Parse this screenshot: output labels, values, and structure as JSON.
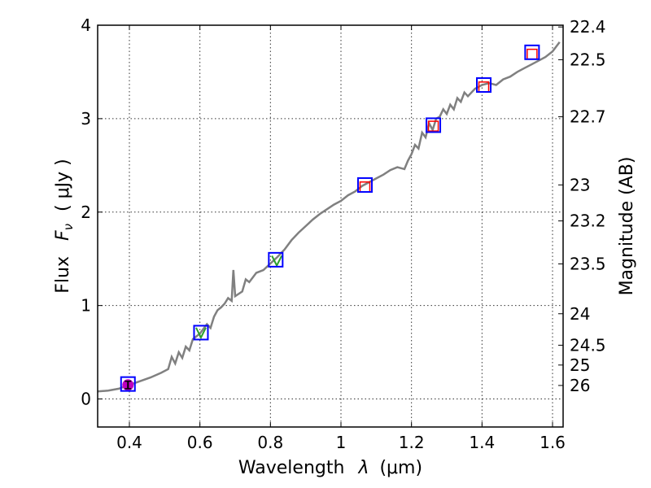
{
  "chart_data": {
    "type": "line",
    "xlabel": "Wavelength",
    "xlabel_symbol": "λ",
    "xlabel_unit": "(μm)",
    "ylabel": "Flux",
    "ylabel_symbol": "F",
    "ylabel_subscript": "ν",
    "ylabel_unit": "( μJy )",
    "ylabel_right": "Magnitude (AB)",
    "xlim": [
      0.31,
      1.63
    ],
    "ylim": [
      -0.3,
      4.0
    ],
    "grid": true,
    "x_ticks": [
      0.4,
      0.6,
      0.8,
      1.0,
      1.2,
      1.4,
      1.6
    ],
    "x_tick_labels": [
      "0.4",
      "0.6",
      "0.8",
      "1",
      "1.2",
      "1.4",
      "1.6"
    ],
    "y_ticks": [
      0,
      1,
      2,
      3,
      4
    ],
    "y_tick_labels": [
      "0",
      "1",
      "2",
      "3",
      "4"
    ],
    "right_ticks": [
      {
        "label": "22.4",
        "mag": 22.4
      },
      {
        "label": "22.5",
        "mag": 22.5
      },
      {
        "label": "22.7",
        "mag": 22.7
      },
      {
        "label": "23",
        "mag": 23.0
      },
      {
        "label": "23.2",
        "mag": 23.2
      },
      {
        "label": "23.5",
        "mag": 23.5
      },
      {
        "label": "24",
        "mag": 24.0
      },
      {
        "label": "24.5",
        "mag": 24.5
      },
      {
        "label": "25",
        "mag": 25.0
      },
      {
        "label": "26",
        "mag": 26.0
      }
    ],
    "model_spectrum": {
      "name": "model",
      "color": "#808080",
      "points": [
        [
          0.31,
          0.08
        ],
        [
          0.34,
          0.09
        ],
        [
          0.37,
          0.11
        ],
        [
          0.4,
          0.15
        ],
        [
          0.43,
          0.19
        ],
        [
          0.46,
          0.23
        ],
        [
          0.49,
          0.28
        ],
        [
          0.51,
          0.32
        ],
        [
          0.52,
          0.45
        ],
        [
          0.53,
          0.38
        ],
        [
          0.54,
          0.5
        ],
        [
          0.55,
          0.44
        ],
        [
          0.56,
          0.56
        ],
        [
          0.57,
          0.52
        ],
        [
          0.58,
          0.64
        ],
        [
          0.6,
          0.7
        ],
        [
          0.62,
          0.8
        ],
        [
          0.63,
          0.76
        ],
        [
          0.64,
          0.88
        ],
        [
          0.65,
          0.95
        ],
        [
          0.66,
          0.98
        ],
        [
          0.67,
          1.02
        ],
        [
          0.68,
          1.08
        ],
        [
          0.69,
          1.05
        ],
        [
          0.695,
          1.38
        ],
        [
          0.7,
          1.1
        ],
        [
          0.72,
          1.15
        ],
        [
          0.73,
          1.28
        ],
        [
          0.74,
          1.25
        ],
        [
          0.76,
          1.35
        ],
        [
          0.78,
          1.38
        ],
        [
          0.8,
          1.45
        ],
        [
          0.82,
          1.52
        ],
        [
          0.84,
          1.6
        ],
        [
          0.86,
          1.7
        ],
        [
          0.88,
          1.78
        ],
        [
          0.9,
          1.85
        ],
        [
          0.92,
          1.92
        ],
        [
          0.94,
          1.98
        ],
        [
          0.96,
          2.03
        ],
        [
          0.98,
          2.08
        ],
        [
          1.0,
          2.12
        ],
        [
          1.02,
          2.18
        ],
        [
          1.04,
          2.22
        ],
        [
          1.06,
          2.28
        ],
        [
          1.08,
          2.32
        ],
        [
          1.1,
          2.36
        ],
        [
          1.12,
          2.4
        ],
        [
          1.14,
          2.45
        ],
        [
          1.16,
          2.48
        ],
        [
          1.18,
          2.46
        ],
        [
          1.19,
          2.55
        ],
        [
          1.2,
          2.62
        ],
        [
          1.21,
          2.72
        ],
        [
          1.22,
          2.68
        ],
        [
          1.23,
          2.85
        ],
        [
          1.24,
          2.8
        ],
        [
          1.25,
          2.95
        ],
        [
          1.26,
          2.88
        ],
        [
          1.27,
          3.0
        ],
        [
          1.28,
          3.02
        ],
        [
          1.29,
          3.1
        ],
        [
          1.3,
          3.05
        ],
        [
          1.31,
          3.15
        ],
        [
          1.32,
          3.1
        ],
        [
          1.33,
          3.22
        ],
        [
          1.34,
          3.18
        ],
        [
          1.35,
          3.28
        ],
        [
          1.36,
          3.24
        ],
        [
          1.38,
          3.32
        ],
        [
          1.4,
          3.36
        ],
        [
          1.42,
          3.38
        ],
        [
          1.44,
          3.36
        ],
        [
          1.46,
          3.42
        ],
        [
          1.48,
          3.45
        ],
        [
          1.5,
          3.5
        ],
        [
          1.52,
          3.54
        ],
        [
          1.54,
          3.58
        ],
        [
          1.56,
          3.62
        ],
        [
          1.58,
          3.66
        ],
        [
          1.6,
          3.72
        ],
        [
          1.62,
          3.82
        ]
      ]
    },
    "observed_points": [
      {
        "x": 0.396,
        "y": 0.15,
        "yerr": 0.04,
        "color": "#bf00bf"
      }
    ],
    "green_points": [
      {
        "x": 0.603,
        "y": 0.71,
        "color": "#2ca02c"
      },
      {
        "x": 0.818,
        "y": 1.48,
        "color": "#2ca02c"
      }
    ],
    "model_photometry": [
      {
        "x": 0.396,
        "y": 0.16
      },
      {
        "x": 0.603,
        "y": 0.71
      },
      {
        "x": 0.815,
        "y": 1.49
      },
      {
        "x": 1.068,
        "y": 2.29
      },
      {
        "x": 1.262,
        "y": 2.93
      },
      {
        "x": 1.405,
        "y": 3.36
      },
      {
        "x": 1.542,
        "y": 3.71
      }
    ],
    "model_photometry_color": "#0000ff",
    "red_points": [
      {
        "x": 1.068,
        "y": 2.27
      },
      {
        "x": 1.262,
        "y": 2.92
      },
      {
        "x": 1.405,
        "y": 3.34
      },
      {
        "x": 1.542,
        "y": 3.69
      }
    ],
    "red_points_color": "#ff0000"
  }
}
